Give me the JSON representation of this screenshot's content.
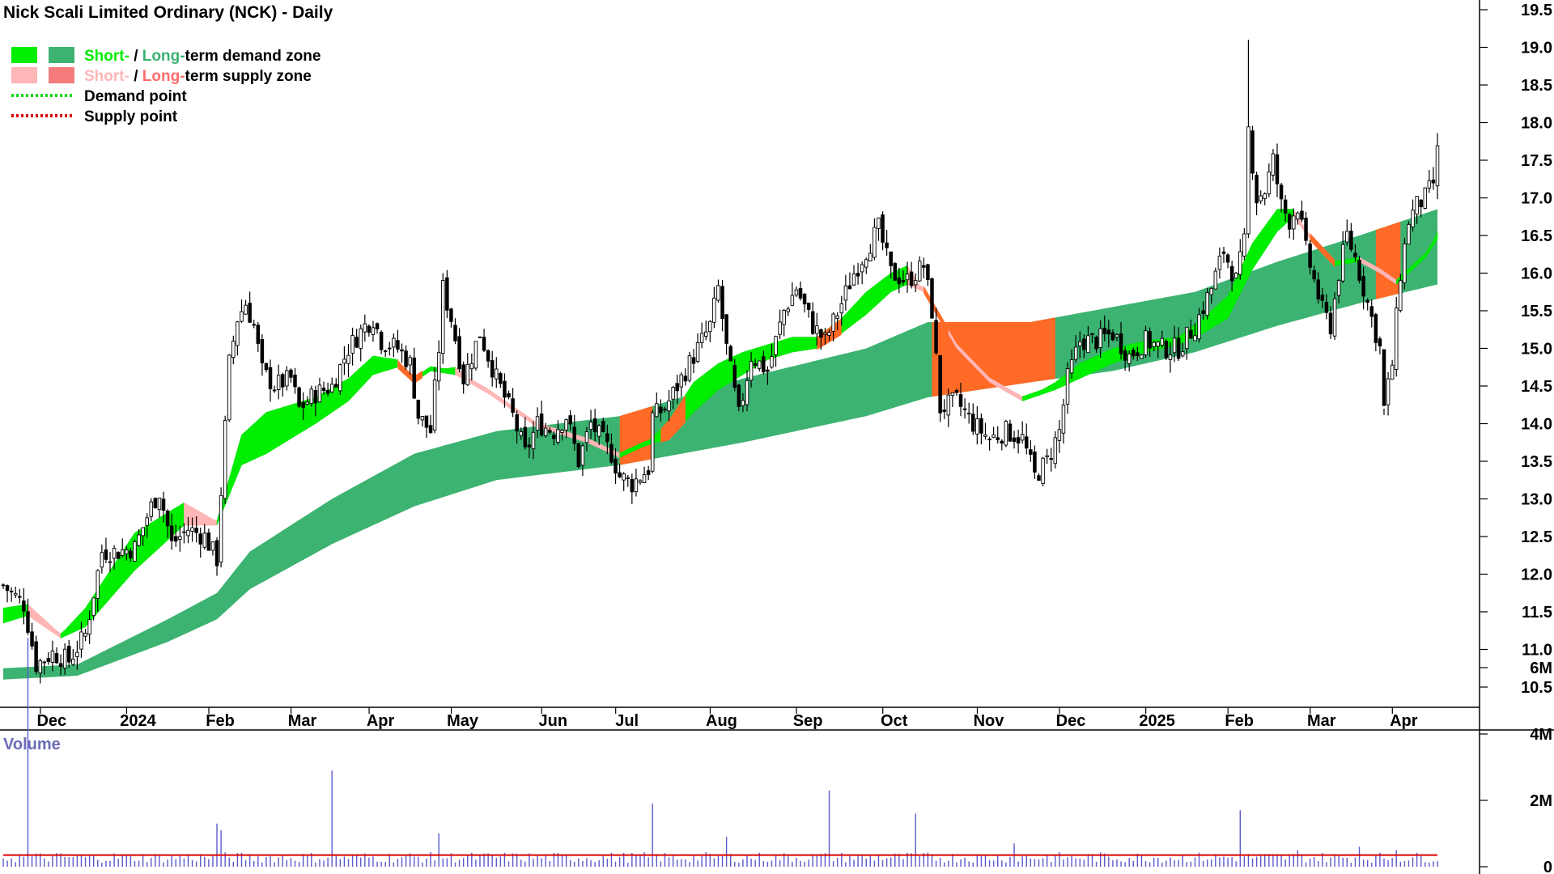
{
  "chart_data": {
    "type": "candlestick",
    "title": "Nick Scali Limited Ordinary (NCK) - Daily",
    "legend": [
      {
        "parts": [
          {
            "text": "Short-",
            "color": "#00ee00"
          },
          {
            "text": " / ",
            "color": "#000000"
          },
          {
            "text": "Long-",
            "color": "#3cb371"
          },
          {
            "text": "term demand zone",
            "color": "#000000"
          }
        ],
        "swatches": [
          "#00ee00",
          "#3cb371"
        ]
      },
      {
        "parts": [
          {
            "text": "Short-",
            "color": "#ffb6b6"
          },
          {
            "text": " / ",
            "color": "#000000"
          },
          {
            "text": "Long-",
            "color": "#ff6b6b"
          },
          {
            "text": "term supply zone",
            "color": "#000000"
          }
        ],
        "swatches": [
          "#ffb6b6",
          "#f47c7c"
        ]
      },
      {
        "parts": [
          {
            "text": "Demand point",
            "color": "#000000"
          }
        ],
        "dotted": "#00dd00"
      },
      {
        "parts": [
          {
            "text": "Supply point",
            "color": "#000000"
          }
        ],
        "dotted": "#dd0000"
      }
    ],
    "legend_position": "top-left",
    "price_axis": {
      "ticks": [
        "19.5",
        "19.0",
        "18.5",
        "18.0",
        "17.5",
        "17.0",
        "16.5",
        "16.0",
        "15.5",
        "15.0",
        "14.5",
        "14.0",
        "13.5",
        "13.0",
        "12.5",
        "12.0",
        "11.5",
        "11.0",
        "10.5"
      ],
      "range": [
        10.25,
        19.6
      ]
    },
    "x_axis": {
      "labels": [
        "Dec",
        "2024",
        "Feb",
        "Mar",
        "Apr",
        "May",
        "Jun",
        "Jul",
        "Aug",
        "Sep",
        "Oct",
        "Nov",
        "Dec",
        "2025",
        "Feb",
        "Mar",
        "Apr"
      ],
      "label_index": [
        11,
        32,
        52,
        72,
        91,
        111,
        133,
        151,
        174,
        195,
        216,
        239,
        259,
        280,
        300,
        320,
        340
      ]
    },
    "price_anchors": [
      [
        0,
        11.85
      ],
      [
        5,
        11.6
      ],
      [
        8,
        10.8
      ],
      [
        12,
        10.95
      ],
      [
        16,
        10.85
      ],
      [
        20,
        11.2
      ],
      [
        24,
        12.3
      ],
      [
        28,
        12.3
      ],
      [
        32,
        12.35
      ],
      [
        36,
        12.9
      ],
      [
        38,
        13.1
      ],
      [
        41,
        12.4
      ],
      [
        45,
        12.6
      ],
      [
        49,
        12.5
      ],
      [
        52,
        12.2
      ],
      [
        53,
        13.1
      ],
      [
        55,
        14.8
      ],
      [
        57,
        15.4
      ],
      [
        59,
        15.6
      ],
      [
        61,
        15.3
      ],
      [
        63,
        14.7
      ],
      [
        66,
        14.5
      ],
      [
        70,
        14.6
      ],
      [
        72,
        14.2
      ],
      [
        76,
        14.4
      ],
      [
        80,
        14.5
      ],
      [
        84,
        15.0
      ],
      [
        88,
        15.3
      ],
      [
        90,
        15.4
      ],
      [
        92,
        15.1
      ],
      [
        96,
        15.0
      ],
      [
        99,
        14.8
      ],
      [
        101,
        14.1
      ],
      [
        104,
        13.9
      ],
      [
        106,
        15.0
      ],
      [
        107,
        15.8
      ],
      [
        109,
        15.4
      ],
      [
        112,
        14.6
      ],
      [
        116,
        15.2
      ],
      [
        120,
        14.6
      ],
      [
        124,
        14.1
      ],
      [
        127,
        13.6
      ],
      [
        130,
        14.0
      ],
      [
        134,
        13.9
      ],
      [
        137,
        14.1
      ],
      [
        140,
        13.5
      ],
      [
        143,
        14.0
      ],
      [
        148,
        13.6
      ],
      [
        150,
        13.3
      ],
      [
        153,
        13.2
      ],
      [
        157,
        13.4
      ],
      [
        158,
        14.1
      ],
      [
        161,
        14.2
      ],
      [
        164,
        14.5
      ],
      [
        168,
        14.9
      ],
      [
        172,
        15.3
      ],
      [
        174,
        15.8
      ],
      [
        176,
        15.0
      ],
      [
        179,
        14.1
      ],
      [
        182,
        14.9
      ],
      [
        186,
        14.7
      ],
      [
        190,
        15.5
      ],
      [
        193,
        15.8
      ],
      [
        197,
        15.3
      ],
      [
        200,
        15.1
      ],
      [
        204,
        15.6
      ],
      [
        207,
        16.0
      ],
      [
        210,
        16.3
      ],
      [
        213,
        16.6
      ],
      [
        216,
        16.0
      ],
      [
        220,
        15.9
      ],
      [
        224,
        16.1
      ],
      [
        226,
        15.5
      ],
      [
        228,
        14.2
      ],
      [
        232,
        14.3
      ],
      [
        236,
        14.0
      ],
      [
        240,
        13.8
      ],
      [
        244,
        13.9
      ],
      [
        248,
        13.8
      ],
      [
        251,
        13.3
      ],
      [
        254,
        13.5
      ],
      [
        257,
        13.9
      ],
      [
        259,
        14.6
      ],
      [
        262,
        15.1
      ],
      [
        266,
        15.1
      ],
      [
        270,
        15.2
      ],
      [
        274,
        14.9
      ],
      [
        278,
        15.1
      ],
      [
        282,
        15.0
      ],
      [
        286,
        15.0
      ],
      [
        290,
        15.3
      ],
      [
        294,
        15.8
      ],
      [
        297,
        16.3
      ],
      [
        300,
        15.9
      ],
      [
        302,
        16.4
      ],
      [
        303,
        17.9
      ],
      [
        305,
        17.0
      ],
      [
        307,
        17.1
      ],
      [
        309,
        17.5
      ],
      [
        311,
        16.9
      ],
      [
        313,
        16.7
      ],
      [
        315,
        16.9
      ],
      [
        317,
        16.3
      ],
      [
        319,
        15.9
      ],
      [
        321,
        15.5
      ],
      [
        323,
        15.3
      ],
      [
        325,
        16.0
      ],
      [
        327,
        16.5
      ],
      [
        329,
        16.2
      ],
      [
        331,
        15.8
      ],
      [
        333,
        15.4
      ],
      [
        335,
        15.0
      ],
      [
        336,
        14.2
      ],
      [
        338,
        14.8
      ],
      [
        340,
        16.0
      ],
      [
        342,
        16.7
      ],
      [
        344,
        16.9
      ],
      [
        346,
        17.0
      ],
      [
        348,
        17.2
      ],
      [
        349,
        17.6
      ]
    ],
    "high_spikes": [
      [
        303,
        19.1
      ],
      [
        107,
        16.0
      ],
      [
        213,
        16.7
      ],
      [
        336,
        14.2
      ]
    ],
    "long_zone_anchors": [
      [
        0,
        10.75,
        10.6
      ],
      [
        18,
        10.8,
        10.65
      ],
      [
        40,
        11.4,
        11.1
      ],
      [
        52,
        11.75,
        11.4
      ],
      [
        60,
        12.3,
        11.8
      ],
      [
        80,
        13.0,
        12.4
      ],
      [
        100,
        13.6,
        12.9
      ],
      [
        120,
        13.9,
        13.25
      ],
      [
        150,
        14.1,
        13.45
      ],
      [
        180,
        14.6,
        13.75
      ],
      [
        210,
        15.0,
        14.1
      ],
      [
        225,
        15.35,
        14.35
      ],
      [
        250,
        15.35,
        14.55
      ],
      [
        270,
        15.55,
        14.7
      ],
      [
        290,
        15.75,
        14.95
      ],
      [
        310,
        16.15,
        15.3
      ],
      [
        330,
        16.5,
        15.6
      ],
      [
        349,
        16.85,
        15.85
      ]
    ],
    "short_zone_anchors": [
      [
        0,
        11.55,
        11.35
      ],
      [
        6,
        11.6,
        11.45
      ],
      [
        14,
        11.2,
        11.15
      ],
      [
        20,
        11.55,
        11.3
      ],
      [
        32,
        12.55,
        12.05
      ],
      [
        44,
        12.95,
        12.65
      ],
      [
        52,
        12.7,
        12.65
      ],
      [
        58,
        13.85,
        13.45
      ],
      [
        64,
        14.15,
        13.6
      ],
      [
        76,
        14.35,
        14.0
      ],
      [
        84,
        14.6,
        14.3
      ],
      [
        90,
        14.9,
        14.65
      ],
      [
        96,
        14.85,
        14.75
      ],
      [
        100,
        14.55,
        14.55
      ],
      [
        104,
        14.7,
        14.7
      ],
      [
        110,
        14.75,
        14.65
      ],
      [
        118,
        14.4,
        14.4
      ],
      [
        130,
        13.95,
        13.95
      ],
      [
        142,
        13.75,
        13.75
      ],
      [
        150,
        13.55,
        13.55
      ],
      [
        156,
        13.7,
        13.7
      ],
      [
        162,
        14.05,
        13.8
      ],
      [
        168,
        14.55,
        14.15
      ],
      [
        174,
        14.8,
        14.45
      ],
      [
        180,
        14.95,
        14.65
      ],
      [
        186,
        15.05,
        14.85
      ],
      [
        192,
        15.15,
        14.95
      ],
      [
        198,
        15.15,
        15.0
      ],
      [
        204,
        15.4,
        15.2
      ],
      [
        210,
        15.75,
        15.45
      ],
      [
        216,
        16.0,
        15.75
      ],
      [
        220,
        16.1,
        15.85
      ],
      [
        224,
        15.75,
        15.75
      ],
      [
        232,
        15.0,
        15.0
      ],
      [
        240,
        14.55,
        14.55
      ],
      [
        248,
        14.3,
        14.3
      ],
      [
        256,
        14.55,
        14.45
      ],
      [
        262,
        14.8,
        14.6
      ],
      [
        270,
        15.0,
        14.8
      ],
      [
        278,
        15.1,
        14.95
      ],
      [
        286,
        15.15,
        15.05
      ],
      [
        292,
        15.4,
        15.2
      ],
      [
        298,
        15.7,
        15.4
      ],
      [
        304,
        16.4,
        16.05
      ],
      [
        310,
        16.85,
        16.55
      ],
      [
        314,
        16.85,
        16.75
      ],
      [
        318,
        16.45,
        16.45
      ],
      [
        324,
        16.1,
        16.1
      ],
      [
        330,
        16.15,
        16.15
      ],
      [
        335,
        16.0,
        16.0
      ],
      [
        339,
        15.85,
        15.85
      ],
      [
        342,
        16.0,
        16.0
      ],
      [
        346,
        16.2,
        16.2
      ],
      [
        349,
        16.55,
        16.45
      ]
    ],
    "volume_axis": {
      "ticks": [
        "6M",
        "4M",
        "2M",
        "0"
      ],
      "range_millions": [
        0,
        7.2
      ]
    },
    "volume_label": "Volume",
    "volume_spikes": [
      [
        6,
        6.9
      ],
      [
        52,
        1.3
      ],
      [
        53,
        1.1
      ],
      [
        80,
        2.9
      ],
      [
        106,
        1.0
      ],
      [
        158,
        1.9
      ],
      [
        176,
        0.9
      ],
      [
        201,
        2.3
      ],
      [
        222,
        1.6
      ],
      [
        246,
        0.7
      ],
      [
        301,
        1.7
      ],
      [
        315,
        0.5
      ],
      [
        330,
        0.6
      ],
      [
        339,
        0.5
      ]
    ],
    "volume_baseline_millions": 0.35
  }
}
